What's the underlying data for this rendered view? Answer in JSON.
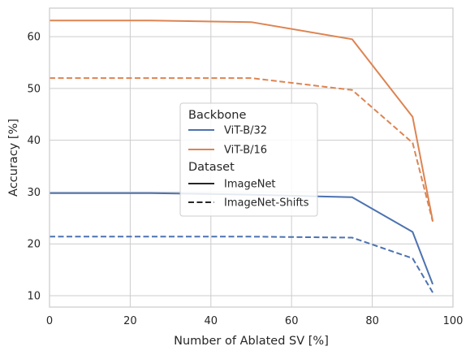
{
  "chart_data": {
    "type": "line",
    "xlabel": "Number of Ablated SV [%]",
    "ylabel": "Accuracy [%]",
    "xlim": [
      0,
      100
    ],
    "ylim": [
      7.8,
      65.5
    ],
    "xticks": [
      0,
      20,
      40,
      60,
      80,
      100
    ],
    "yticks": [
      10,
      20,
      30,
      40,
      50,
      60
    ],
    "grid": true,
    "legend_placement": "center",
    "legend": {
      "hue_title": "Backbone",
      "hue_entries": [
        {
          "name": "ViT-B/32",
          "color": "#4c72b0"
        },
        {
          "name": "ViT-B/16",
          "color": "#dd8452"
        }
      ],
      "style_title": "Dataset",
      "style_entries": [
        {
          "name": "ImageNet",
          "dash": "solid"
        },
        {
          "name": "ImageNet-Shifts",
          "dash": "dashed"
        }
      ]
    },
    "series": [
      {
        "backbone": "ViT-B/32",
        "dataset": "ImageNet",
        "color": "#4c72b0",
        "dash": "solid",
        "x": [
          0,
          25,
          50,
          75,
          90,
          95
        ],
        "y": [
          29.8,
          29.8,
          29.5,
          29.0,
          22.3,
          12.2
        ]
      },
      {
        "backbone": "ViT-B/32",
        "dataset": "ImageNet-Shifts",
        "color": "#4c72b0",
        "dash": "dashed",
        "x": [
          0,
          25,
          50,
          75,
          90,
          95
        ],
        "y": [
          21.4,
          21.4,
          21.4,
          21.2,
          17.2,
          10.6
        ]
      },
      {
        "backbone": "ViT-B/16",
        "dataset": "ImageNet",
        "color": "#dd8452",
        "dash": "solid",
        "x": [
          0,
          25,
          50,
          75,
          90,
          95
        ],
        "y": [
          63.1,
          63.1,
          62.8,
          59.5,
          44.5,
          24.4
        ]
      },
      {
        "backbone": "ViT-B/16",
        "dataset": "ImageNet-Shifts",
        "color": "#dd8452",
        "dash": "dashed",
        "x": [
          0,
          25,
          50,
          75,
          90,
          95
        ],
        "y": [
          52.0,
          52.0,
          52.0,
          49.7,
          39.5,
          24.3
        ]
      }
    ]
  }
}
